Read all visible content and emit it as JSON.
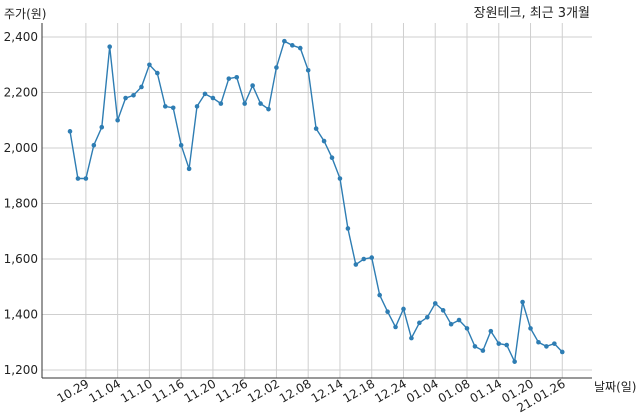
{
  "chart_data": {
    "type": "line",
    "title": "장원테크, 최근 3개월",
    "ylabel": "주가(원)",
    "xlabel": "날짜(일)",
    "ylim": [
      1200,
      2400
    ],
    "yticks": [
      "1,200",
      "1,400",
      "1,600",
      "1,800",
      "2,000",
      "2,200",
      "2,400"
    ],
    "ytick_values": [
      1200,
      1400,
      1600,
      1800,
      2000,
      2200,
      2400
    ],
    "xtick_labels": [
      "10.29",
      "11.04",
      "11.10",
      "11.16",
      "11.20",
      "11.26",
      "12.02",
      "12.08",
      "12.14",
      "12.18",
      "12.24",
      "01.04",
      "01.08",
      "01.14",
      "01.20",
      "21.01.26"
    ],
    "xtick_index": [
      2,
      6,
      10,
      14,
      18,
      22,
      26,
      30,
      34,
      38,
      42,
      46,
      50,
      54,
      58,
      62
    ],
    "grid": true,
    "color": "#2e7db3",
    "series": [
      {
        "values": [
          2060,
          1890,
          1890,
          2010,
          2075,
          2365,
          2100,
          2180,
          2190,
          2220,
          2300,
          2270,
          2150,
          2145,
          2010,
          1925,
          2150,
          2195,
          2180,
          2160,
          2250,
          2255,
          2160,
          2225,
          2160,
          2140,
          2290,
          2385,
          2370,
          2360,
          2280,
          2070,
          2025,
          1965,
          1890,
          1710,
          1580,
          1600,
          1605,
          1470,
          1410,
          1355,
          1420,
          1315,
          1370,
          1390,
          1440,
          1415,
          1365,
          1380,
          1350,
          1285,
          1270,
          1340,
          1295,
          1290,
          1230,
          1445,
          1350,
          1300,
          1285,
          1295,
          1265
        ]
      }
    ]
  }
}
